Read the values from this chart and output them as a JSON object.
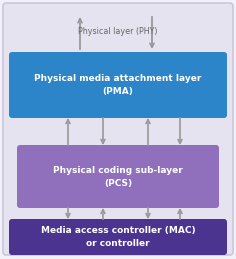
{
  "background_color": "#f2f0f8",
  "outer_box_color": "#e6e3f0",
  "outer_box_edge": "#c5c0d8",
  "pma_box_color": "#2b85c8",
  "pma_text": "Physical media attachment layer\n(PMA)",
  "pma_text_color": "#ffffff",
  "pcs_box_color": "#9070bc",
  "pcs_text": "Physical coding sub-layer\n(PCS)",
  "pcs_text_color": "#ffffff",
  "mac_box_color": "#4a3490",
  "mac_text": "Media access controller (MAC)\nor controller",
  "mac_text_color": "#ffffff",
  "phy_label": "Physical layer (PHY)",
  "phy_label_color": "#666666",
  "arrow_color": "#999999",
  "fig_width": 2.36,
  "fig_height": 2.59,
  "dpi": 100
}
